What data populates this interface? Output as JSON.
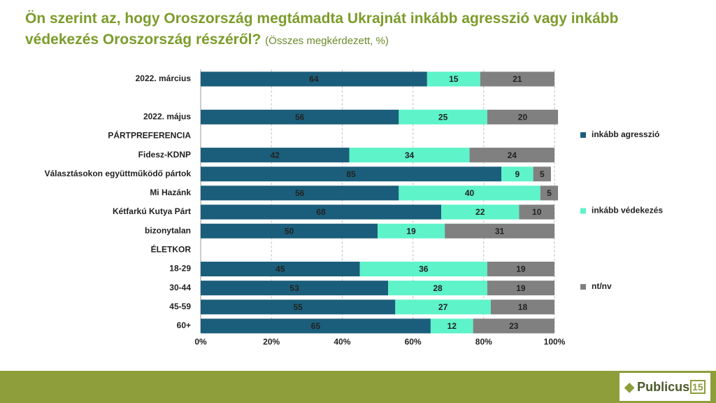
{
  "chart_data": {
    "type": "stacked-hbar",
    "title": "Ön szerint az, hogy Oroszország megtámadta Ukrajnát inkább agresszió vagy inkább védekezés Oroszország részéről?",
    "subtitle": "(Összes megkérdezett, %)",
    "categories": [
      "2022. március",
      null,
      "2022. május",
      "PÁRTPREFERENCIA",
      "Fidesz-KDNP",
      "Választásokon együttműködő pártok",
      "Mi Hazánk",
      "Kétfarkú Kutya Párt",
      "bizonytalan",
      "ÉLETKOR",
      "18-29",
      "30-44",
      "45-59",
      "60+"
    ],
    "series": [
      {
        "name": "inkább agresszió",
        "color": "#1b5e7b",
        "values": [
          64,
          null,
          56,
          null,
          42,
          85,
          56,
          68,
          50,
          null,
          45,
          53,
          55,
          65
        ]
      },
      {
        "name": "inkább védekezés",
        "color": "#5ef3c9",
        "values": [
          15,
          null,
          25,
          null,
          34,
          9,
          40,
          22,
          19,
          null,
          36,
          28,
          27,
          12
        ]
      },
      {
        "name": "nt/nv",
        "color": "#808080",
        "values": [
          21,
          null,
          20,
          null,
          24,
          5,
          5,
          10,
          31,
          null,
          19,
          19,
          18,
          23
        ]
      }
    ],
    "xlim": [
      0,
      100
    ],
    "xticks": [
      {
        "value": 0,
        "label": "0%"
      },
      {
        "value": 20,
        "label": "20%"
      },
      {
        "value": 40,
        "label": "40%"
      },
      {
        "value": 60,
        "label": "60%"
      },
      {
        "value": 80,
        "label": "80%"
      },
      {
        "value": 100,
        "label": "100%"
      }
    ],
    "grid": true,
    "legend": "right"
  },
  "footer": {
    "logo": "Publicus",
    "logo_number": "15"
  }
}
